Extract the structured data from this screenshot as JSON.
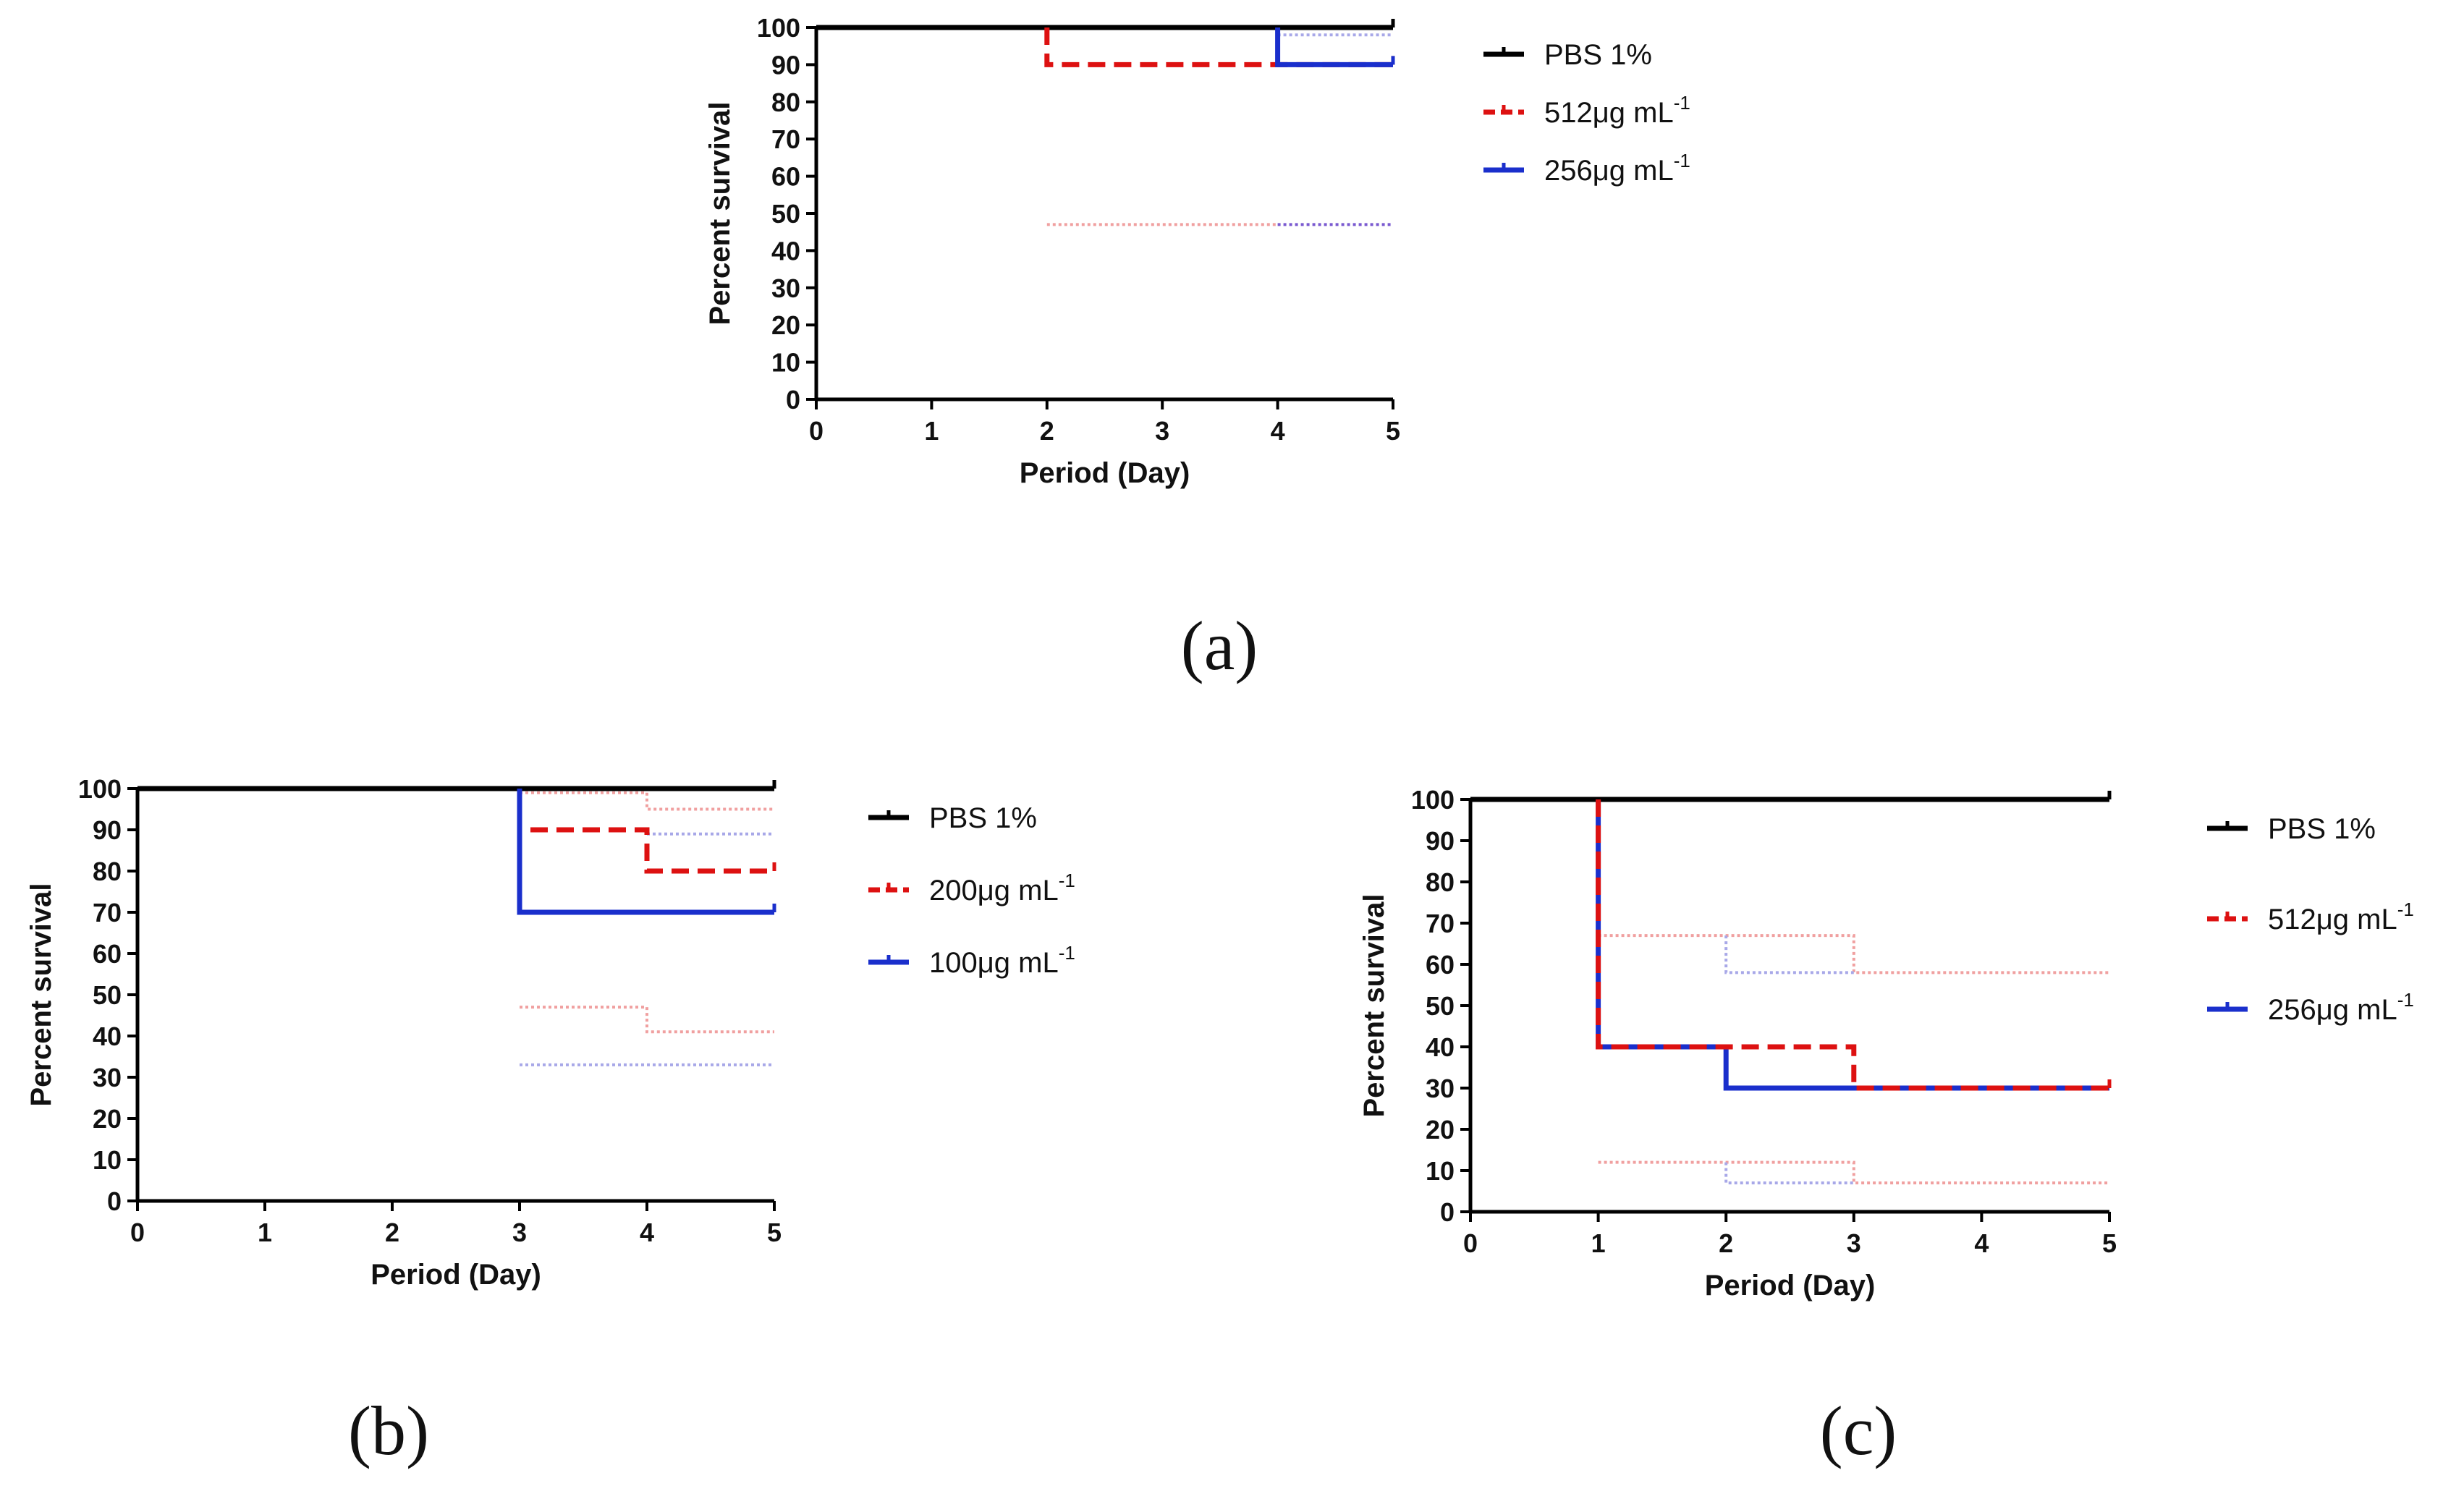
{
  "chart_data": [
    {
      "type": "line",
      "panel_label": "(a)",
      "xlabel": "Period (Day)",
      "ylabel": "Percent survival",
      "xlim": [
        0,
        5
      ],
      "ylim": [
        0,
        100
      ],
      "x_ticks": [
        "0",
        "1",
        "2",
        "3",
        "4",
        "5"
      ],
      "y_ticks": [
        "0",
        "10",
        "20",
        "30",
        "40",
        "50",
        "60",
        "70",
        "80",
        "90",
        "100"
      ],
      "legend_position": "right",
      "series": [
        {
          "name": "PBS 1%",
          "legend_main": "PBS 1%",
          "legend_sup": "",
          "color": "#000000",
          "style": "solid",
          "points": [
            [
              0,
              100
            ],
            [
              5,
              100
            ]
          ]
        },
        {
          "name": "512µg mL-1",
          "legend_main": "512μg mL",
          "legend_sup": "-1",
          "color": "#dd1111",
          "style": "dashed",
          "points": [
            [
              2,
              100
            ],
            [
              2,
              90
            ],
            [
              5,
              90
            ]
          ]
        },
        {
          "name": "256µg mL-1",
          "legend_main": "256μg mL",
          "legend_sup": "-1",
          "color": "#1a2fcc",
          "style": "solid",
          "points": [
            [
              4,
              100
            ],
            [
              4,
              90
            ],
            [
              5,
              90
            ]
          ]
        }
      ],
      "confidence_bands": [
        {
          "color": "#f0a0a0",
          "points": [
            [
              2,
              47
            ],
            [
              4,
              47
            ]
          ]
        },
        {
          "color": "#7a5ad0",
          "points": [
            [
              4,
              47
            ],
            [
              5,
              47
            ]
          ]
        },
        {
          "color": "#a8a8e8",
          "points": [
            [
              4,
              98
            ],
            [
              5,
              98
            ]
          ]
        }
      ]
    },
    {
      "type": "line",
      "panel_label": "(b)",
      "xlabel": "Period (Day)",
      "ylabel": "Percent survival",
      "xlim": [
        0,
        5
      ],
      "ylim": [
        0,
        100
      ],
      "x_ticks": [
        "0",
        "1",
        "2",
        "3",
        "4",
        "5"
      ],
      "y_ticks": [
        "0",
        "10",
        "20",
        "30",
        "40",
        "50",
        "60",
        "70",
        "80",
        "90",
        "100"
      ],
      "legend_position": "right",
      "series": [
        {
          "name": "PBS 1%",
          "legend_main": "PBS 1%",
          "legend_sup": "",
          "color": "#000000",
          "style": "solid",
          "points": [
            [
              0,
              100
            ],
            [
              5,
              100
            ]
          ]
        },
        {
          "name": "200µg mL-1",
          "legend_main": "200μg mL",
          "legend_sup": "-1",
          "color": "#dd1111",
          "style": "dashed",
          "points": [
            [
              3,
              100
            ],
            [
              3,
              90
            ],
            [
              4,
              90
            ],
            [
              4,
              80
            ],
            [
              5,
              80
            ]
          ]
        },
        {
          "name": "100µg mL-1",
          "legend_main": "100μg mL",
          "legend_sup": "-1",
          "color": "#1a2fcc",
          "style": "solid",
          "points": [
            [
              3,
              100
            ],
            [
              3,
              70
            ],
            [
              5,
              70
            ]
          ]
        }
      ],
      "confidence_bands": [
        {
          "color": "#f0a0a0",
          "points": [
            [
              3,
              99
            ],
            [
              4,
              99
            ],
            [
              4,
              95
            ],
            [
              5,
              95
            ]
          ]
        },
        {
          "color": "#f0a0a0",
          "points": [
            [
              3,
              47
            ],
            [
              4,
              47
            ],
            [
              4,
              41
            ],
            [
              5,
              41
            ]
          ]
        },
        {
          "color": "#a8a8e8",
          "points": [
            [
              4,
              89
            ],
            [
              5,
              89
            ]
          ]
        },
        {
          "color": "#a8a8e8",
          "points": [
            [
              3,
              33
            ],
            [
              5,
              33
            ]
          ]
        }
      ]
    },
    {
      "type": "line",
      "panel_label": "(c)",
      "xlabel": "Period (Day)",
      "ylabel": "Percent survival",
      "xlim": [
        0,
        5
      ],
      "ylim": [
        0,
        100
      ],
      "x_ticks": [
        "0",
        "1",
        "2",
        "3",
        "4",
        "5"
      ],
      "y_ticks": [
        "0",
        "10",
        "20",
        "30",
        "40",
        "50",
        "60",
        "70",
        "80",
        "90",
        "100"
      ],
      "legend_position": "right",
      "series": [
        {
          "name": "PBS 1%",
          "legend_main": "PBS 1%",
          "legend_sup": "",
          "color": "#000000",
          "style": "solid",
          "points": [
            [
              0,
              100
            ],
            [
              5,
              100
            ]
          ]
        },
        {
          "name": "256µg mL-1",
          "legend_main": "256μg mL",
          "legend_sup": "-1",
          "color": "#1a2fcc",
          "style": "solid",
          "points": [
            [
              1,
              100
            ],
            [
              1,
              40
            ],
            [
              2,
              40
            ],
            [
              2,
              30
            ],
            [
              5,
              30
            ]
          ]
        },
        {
          "name": "512µg mL-1",
          "legend_main": "512μg mL",
          "legend_sup": "-1",
          "color": "#dd1111",
          "style": "dashed",
          "points": [
            [
              1,
              100
            ],
            [
              1,
              40
            ],
            [
              3,
              40
            ],
            [
              3,
              30
            ],
            [
              5,
              30
            ]
          ]
        }
      ],
      "legend_order": [
        0,
        2,
        1
      ],
      "confidence_bands": [
        {
          "color": "#f0a0a0",
          "points": [
            [
              1,
              67
            ],
            [
              3,
              67
            ],
            [
              3,
              58
            ],
            [
              5,
              58
            ]
          ]
        },
        {
          "color": "#a8a8e8",
          "points": [
            [
              2,
              67
            ],
            [
              2,
              58
            ],
            [
              3,
              58
            ]
          ]
        },
        {
          "color": "#f0a0a0",
          "points": [
            [
              1,
              12
            ],
            [
              3,
              12
            ],
            [
              3,
              7
            ],
            [
              5,
              7
            ]
          ]
        },
        {
          "color": "#a8a8e8",
          "points": [
            [
              2,
              12
            ],
            [
              2,
              7
            ],
            [
              3,
              7
            ]
          ]
        }
      ]
    }
  ]
}
